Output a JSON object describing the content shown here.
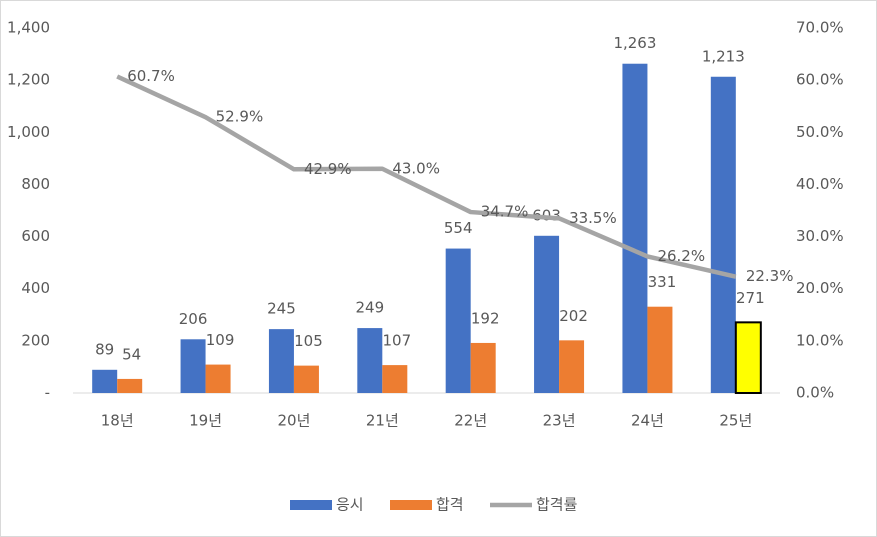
{
  "chart_data": {
    "type": "bar-line",
    "categories": [
      "18년",
      "19년",
      "20년",
      "21년",
      "22년",
      "23년",
      "24년",
      "25년"
    ],
    "series": [
      {
        "name": "응시",
        "type": "bar",
        "color": "#4472c4",
        "values": [
          89,
          206,
          245,
          249,
          554,
          603,
          1263,
          1213
        ],
        "value_labels": [
          "89",
          "206",
          "245",
          "249",
          "554",
          "603",
          "1,263",
          "1,213"
        ]
      },
      {
        "name": "합격",
        "type": "bar",
        "color": "#ed7d31",
        "values": [
          54,
          109,
          105,
          107,
          192,
          202,
          331,
          271
        ],
        "colors": [
          "#ed7d31",
          "#ed7d31",
          "#ed7d31",
          "#ed7d31",
          "#ed7d31",
          "#ed7d31",
          "#ed7d31",
          "#ffff00"
        ],
        "edgecolors": [
          "none",
          "none",
          "none",
          "none",
          "none",
          "none",
          "none",
          "#000000"
        ]
      },
      {
        "name": "합격률",
        "type": "line",
        "axis": "y2",
        "color": "#a5a5a5",
        "values": [
          60.7,
          52.9,
          42.9,
          43.0,
          34.7,
          33.5,
          26.2,
          22.3
        ],
        "value_labels": [
          "60.7%",
          "52.9%",
          "42.9%",
          "43.0%",
          "34.7%",
          "33.5%",
          "26.2%",
          "22.3%"
        ]
      }
    ],
    "ylim": [
      0,
      1400
    ],
    "yticks": [
      {
        "value": 0,
        "label": "-"
      },
      200,
      400,
      600,
      800,
      {
        "value": 1000,
        "label": "1,000"
      },
      {
        "value": 1200,
        "label": "1,200"
      },
      {
        "value": 1400,
        "label": "1,400"
      }
    ],
    "y2lim": [
      0,
      70
    ],
    "y2ticks": [
      {
        "value": 0,
        "label": "0.0%"
      },
      {
        "value": 10,
        "label": "10.0%"
      },
      {
        "value": 20,
        "label": "20.0%"
      },
      {
        "value": 30,
        "label": "30.0%"
      },
      {
        "value": 40,
        "label": "40.0%"
      },
      {
        "value": 50,
        "label": "50.0%"
      },
      {
        "value": 60,
        "label": "60.0%"
      },
      {
        "value": 70,
        "label": "70.0%"
      }
    ],
    "legend": "bottom"
  }
}
